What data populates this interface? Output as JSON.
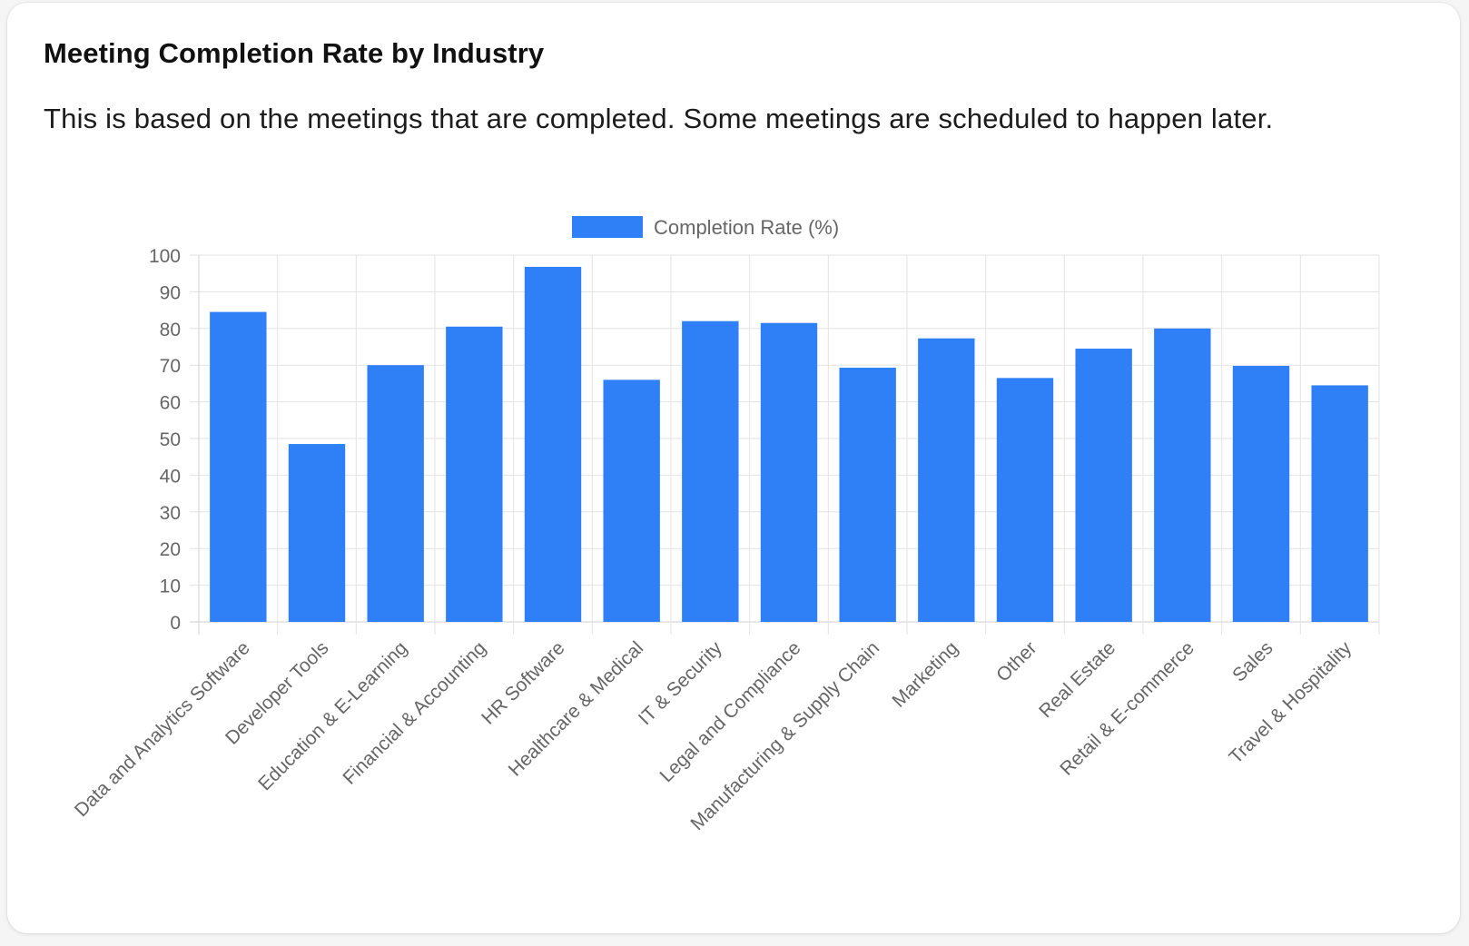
{
  "card": {
    "title": "Meeting Completion Rate by Industry",
    "subtitle": "This is based on the meetings that are completed. Some meetings are scheduled to happen later."
  },
  "chart_data": {
    "type": "bar",
    "title": "Meeting Completion Rate by Industry",
    "subtitle": "This is based on the meetings that are completed. Some meetings are scheduled to happen later.",
    "xlabel": "",
    "ylabel": "",
    "categories": [
      "Data and Analytics Software",
      "Developer Tools",
      "Education & E-Learning",
      "Financial & Accounting",
      "HR Software",
      "Healthcare & Medical",
      "IT & Security",
      "Legal and Compliance",
      "Manufacturing & Supply Chain",
      "Marketing",
      "Other",
      "Real Estate",
      "Retail & E-commerce",
      "Sales",
      "Travel & Hospitality"
    ],
    "series": [
      {
        "name": "Completion Rate (%)",
        "color": "#2f80f7",
        "values": [
          84.5,
          48.5,
          70,
          80.5,
          96.8,
          66,
          82,
          81.5,
          69.3,
          77.3,
          66.5,
          74.5,
          80,
          69.8,
          64.5
        ]
      }
    ],
    "ylim": [
      0,
      100
    ],
    "yticks": [
      "0",
      "10",
      "20",
      "30",
      "40",
      "50",
      "60",
      "70",
      "80",
      "90",
      "100"
    ],
    "grid": true,
    "legend_position": "top-center"
  }
}
